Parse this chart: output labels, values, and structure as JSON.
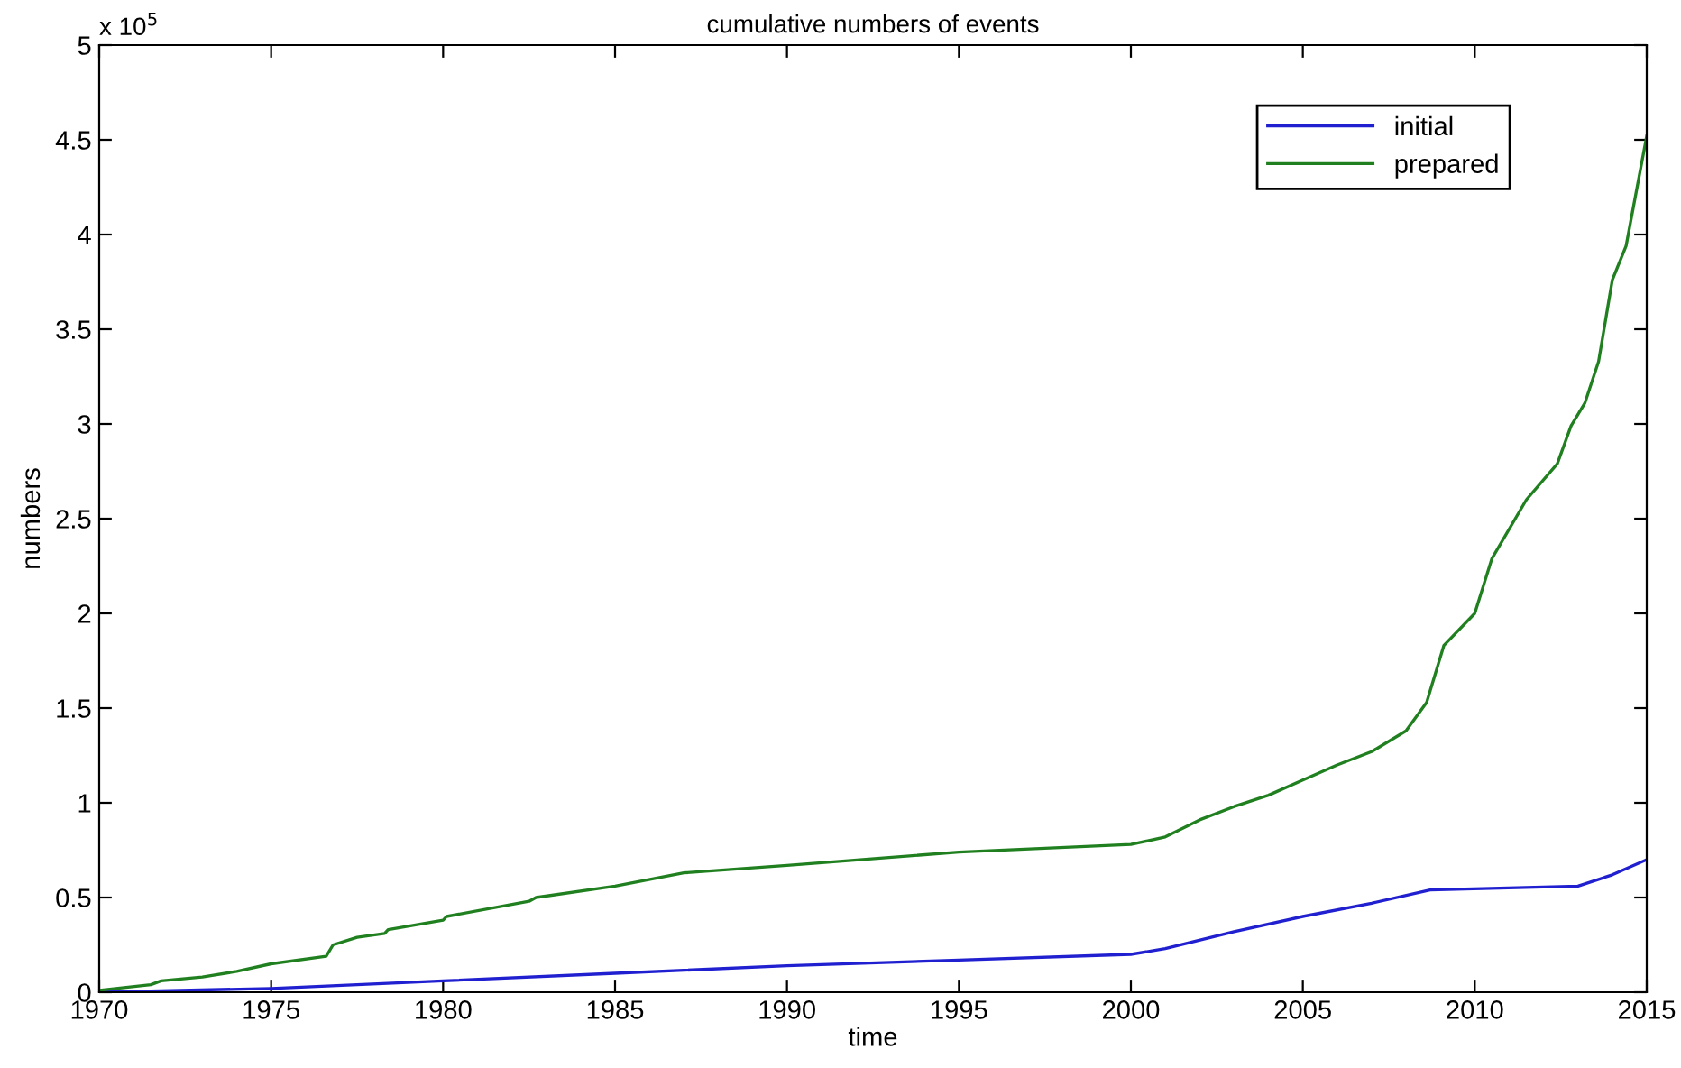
{
  "chart_data": {
    "type": "line",
    "title": "cumulative numbers of events",
    "xlabel": "time",
    "ylabel": "numbers",
    "annotations": [
      "x 10$^{5}$"
    ],
    "xlim": [
      1970,
      2015
    ],
    "xticks": [
      1970,
      1975,
      1980,
      1985,
      1990,
      1995,
      2000,
      2005,
      2010,
      2015
    ],
    "ylim": [
      0,
      5
    ],
    "yticks": [
      0,
      0.5,
      1,
      1.5,
      2,
      2.5,
      3,
      3.5,
      4,
      4.5,
      5
    ],
    "grid": false,
    "legend": "top right",
    "series": [
      {
        "name": "initial",
        "color": "#2020d0",
        "x": [
          1970,
          1975,
          1980,
          1985,
          1990,
          1995,
          2000,
          2001,
          2003,
          2005,
          2007,
          2008.7,
          2013,
          2014,
          2015
        ],
        "values": [
          0,
          0.02,
          0.06,
          0.1,
          0.14,
          0.17,
          0.2,
          0.23,
          0.32,
          0.4,
          0.47,
          0.54,
          0.56,
          0.62,
          0.7
        ]
      },
      {
        "name": "prepared",
        "color": "#208020",
        "x": [
          1970,
          1971.5,
          1971.8,
          1973,
          1974,
          1975,
          1976.6,
          1976.8,
          1977.5,
          1978.3,
          1978.4,
          1980,
          1980.1,
          1982.5,
          1982.7,
          1985,
          1987,
          1990,
          1995,
          2000,
          2001,
          2002,
          2003,
          2004,
          2005,
          2006,
          2007,
          2008,
          2008.6,
          2009.1,
          2010,
          2010.5,
          2011.5,
          2012.4,
          2012.8,
          2013.2,
          2013.6,
          2014,
          2014.4,
          2015
        ],
        "values": [
          0.01,
          0.04,
          0.06,
          0.08,
          0.11,
          0.15,
          0.19,
          0.25,
          0.29,
          0.31,
          0.33,
          0.38,
          0.4,
          0.48,
          0.5,
          0.56,
          0.63,
          0.67,
          0.74,
          0.78,
          0.82,
          0.91,
          0.98,
          1.04,
          1.12,
          1.2,
          1.27,
          1.38,
          1.53,
          1.83,
          2.0,
          2.29,
          2.6,
          2.79,
          2.99,
          3.11,
          3.33,
          3.76,
          3.94,
          4.52
        ]
      }
    ]
  }
}
